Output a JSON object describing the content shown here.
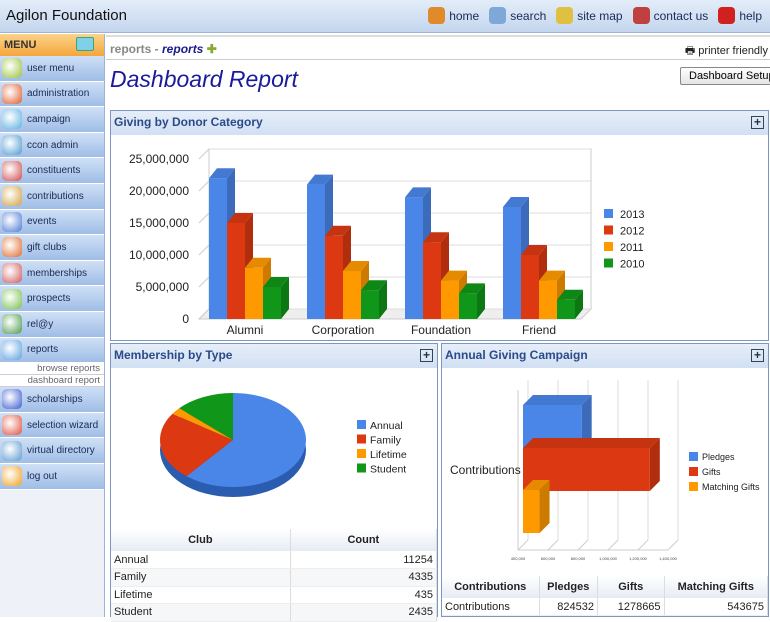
{
  "app": {
    "title": "Agilon Foundation"
  },
  "toplinks": [
    {
      "label": "home",
      "icon": "home-icon",
      "color": "#e08a2a"
    },
    {
      "label": "search",
      "icon": "search-icon",
      "color": "#7fa8d8"
    },
    {
      "label": "site map",
      "icon": "site-map-icon",
      "color": "#e0c040"
    },
    {
      "label": "contact us",
      "icon": "contact-icon",
      "color": "#c04040"
    },
    {
      "label": "help",
      "icon": "help-icon",
      "color": "#d02020"
    }
  ],
  "sidebar": {
    "menu_label": "MENU",
    "items": [
      {
        "label": "user menu",
        "color": "#9bc23a"
      },
      {
        "label": "administration",
        "color": "#e05a2a"
      },
      {
        "label": "campaign",
        "color": "#5ab0e0"
      },
      {
        "label": "ccon admin",
        "color": "#4a9ad0"
      },
      {
        "label": "constituents",
        "color": "#d04a4a"
      },
      {
        "label": "contributions",
        "color": "#d0a040"
      },
      {
        "label": "events",
        "color": "#4a7ad0"
      },
      {
        "label": "gift clubs",
        "color": "#e06a2a"
      },
      {
        "label": "memberships",
        "color": "#d05a5a"
      },
      {
        "label": "prospects",
        "color": "#7ac04a"
      },
      {
        "label": "rel@y",
        "color": "#4a9a4a"
      },
      {
        "label": "reports",
        "color": "#5aa0e0"
      }
    ],
    "subitems": [
      "browse reports",
      "dashboard report"
    ],
    "items2": [
      {
        "label": "scholarships",
        "color": "#3a5ad0"
      },
      {
        "label": "selection wizard",
        "color": "#e0503a"
      },
      {
        "label": "virtual directory",
        "color": "#5a9ad0"
      },
      {
        "label": "log out",
        "color": "#f0a020"
      }
    ]
  },
  "breadcrumb": {
    "parent": "reports",
    "separator": " - ",
    "current": "reports"
  },
  "printer_label": "printer friendly",
  "page_title": "Dashboard Report",
  "setup_button": "Dashboard Setup",
  "chart_data": [
    {
      "type": "bar",
      "title": "Giving by Donor Category",
      "categories": [
        "Alumni",
        "Corporation",
        "Foundation",
        "Friend"
      ],
      "ylim": [
        0,
        25000000
      ],
      "yticks": [
        "0",
        "5,000,000",
        "10,000,000",
        "15,000,000",
        "20,000,000",
        "25,000,000"
      ],
      "legend": "right",
      "series": [
        {
          "name": "2013",
          "color": "#4a86e8",
          "values": [
            22000000,
            21000000,
            19000000,
            17500000
          ]
        },
        {
          "name": "2012",
          "color": "#dc3912",
          "values": [
            15000000,
            13000000,
            12000000,
            10000000
          ]
        },
        {
          "name": "2011",
          "color": "#ff9900",
          "values": [
            8000000,
            7500000,
            6000000,
            6000000
          ]
        },
        {
          "name": "2010",
          "color": "#109618",
          "values": [
            5000000,
            4500000,
            4000000,
            3000000
          ]
        }
      ]
    },
    {
      "type": "pie",
      "title": "Membership by Type",
      "legend": "right",
      "categories": [
        "Annual",
        "Family",
        "Lifetime",
        "Student"
      ],
      "values": [
        11254,
        4335,
        435,
        2435
      ],
      "colors": [
        "#4a86e8",
        "#dc3912",
        "#ff9900",
        "#109618"
      ],
      "table": {
        "headers": [
          "Club",
          "Count"
        ],
        "rows": [
          [
            "Annual",
            "11254"
          ],
          [
            "Family",
            "4335"
          ],
          [
            "Lifetime",
            "435"
          ],
          [
            "Student",
            "2435"
          ]
        ]
      }
    },
    {
      "type": "bar",
      "orientation": "horizontal",
      "title": "Annual Giving Campaign",
      "categories": [
        "Contributions"
      ],
      "xlim": [
        400000,
        1400000
      ],
      "xticks": [
        "400,000",
        "600,000",
        "800,000",
        "1,000,000",
        "1,200,000",
        "1,400,000"
      ],
      "legend": "right",
      "series": [
        {
          "name": "Pledges",
          "color": "#4a86e8",
          "values": [
            824532
          ]
        },
        {
          "name": "Gifts",
          "color": "#dc3912",
          "values": [
            1278665
          ]
        },
        {
          "name": "Matching Gifts",
          "color": "#ff9900",
          "values": [
            543675
          ]
        }
      ],
      "table": {
        "headers": [
          "Contributions",
          "Pledges",
          "Gifts",
          "Matching Gifts"
        ],
        "rows": [
          [
            "Contributions",
            "824532",
            "1278665",
            "543675"
          ]
        ]
      }
    }
  ]
}
